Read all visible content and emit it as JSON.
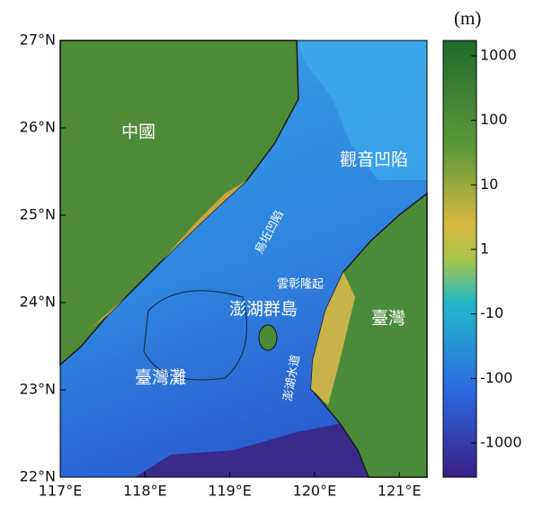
{
  "map": {
    "unit": "(m)",
    "lon_ticks": [
      {
        "value": 117,
        "label": "117°E"
      },
      {
        "value": 118,
        "label": "118°E"
      },
      {
        "value": 119,
        "label": "119°E"
      },
      {
        "value": 120,
        "label": "120°E"
      },
      {
        "value": 121,
        "label": "121°E"
      }
    ],
    "lat_ticks": [
      {
        "value": 27,
        "label": "27°N"
      },
      {
        "value": 26,
        "label": "26°N"
      },
      {
        "value": 25,
        "label": "25°N"
      },
      {
        "value": 24,
        "label": "24°N"
      },
      {
        "value": 23,
        "label": "23°N"
      },
      {
        "value": 22,
        "label": "22°N"
      }
    ],
    "colorbar_ticks": [
      "1000",
      "100",
      "10",
      "1",
      "-10",
      "-100",
      "-1000"
    ],
    "places": {
      "china": "中國",
      "guanyin": "觀音凹陷",
      "wuqiu": "烏坵凹陷",
      "yunzhang": "雲彰隆起",
      "penghu": "澎湖群島",
      "taiwan": "臺灣",
      "bank": "臺灣灘",
      "channel": "澎湖水道"
    }
  }
}
